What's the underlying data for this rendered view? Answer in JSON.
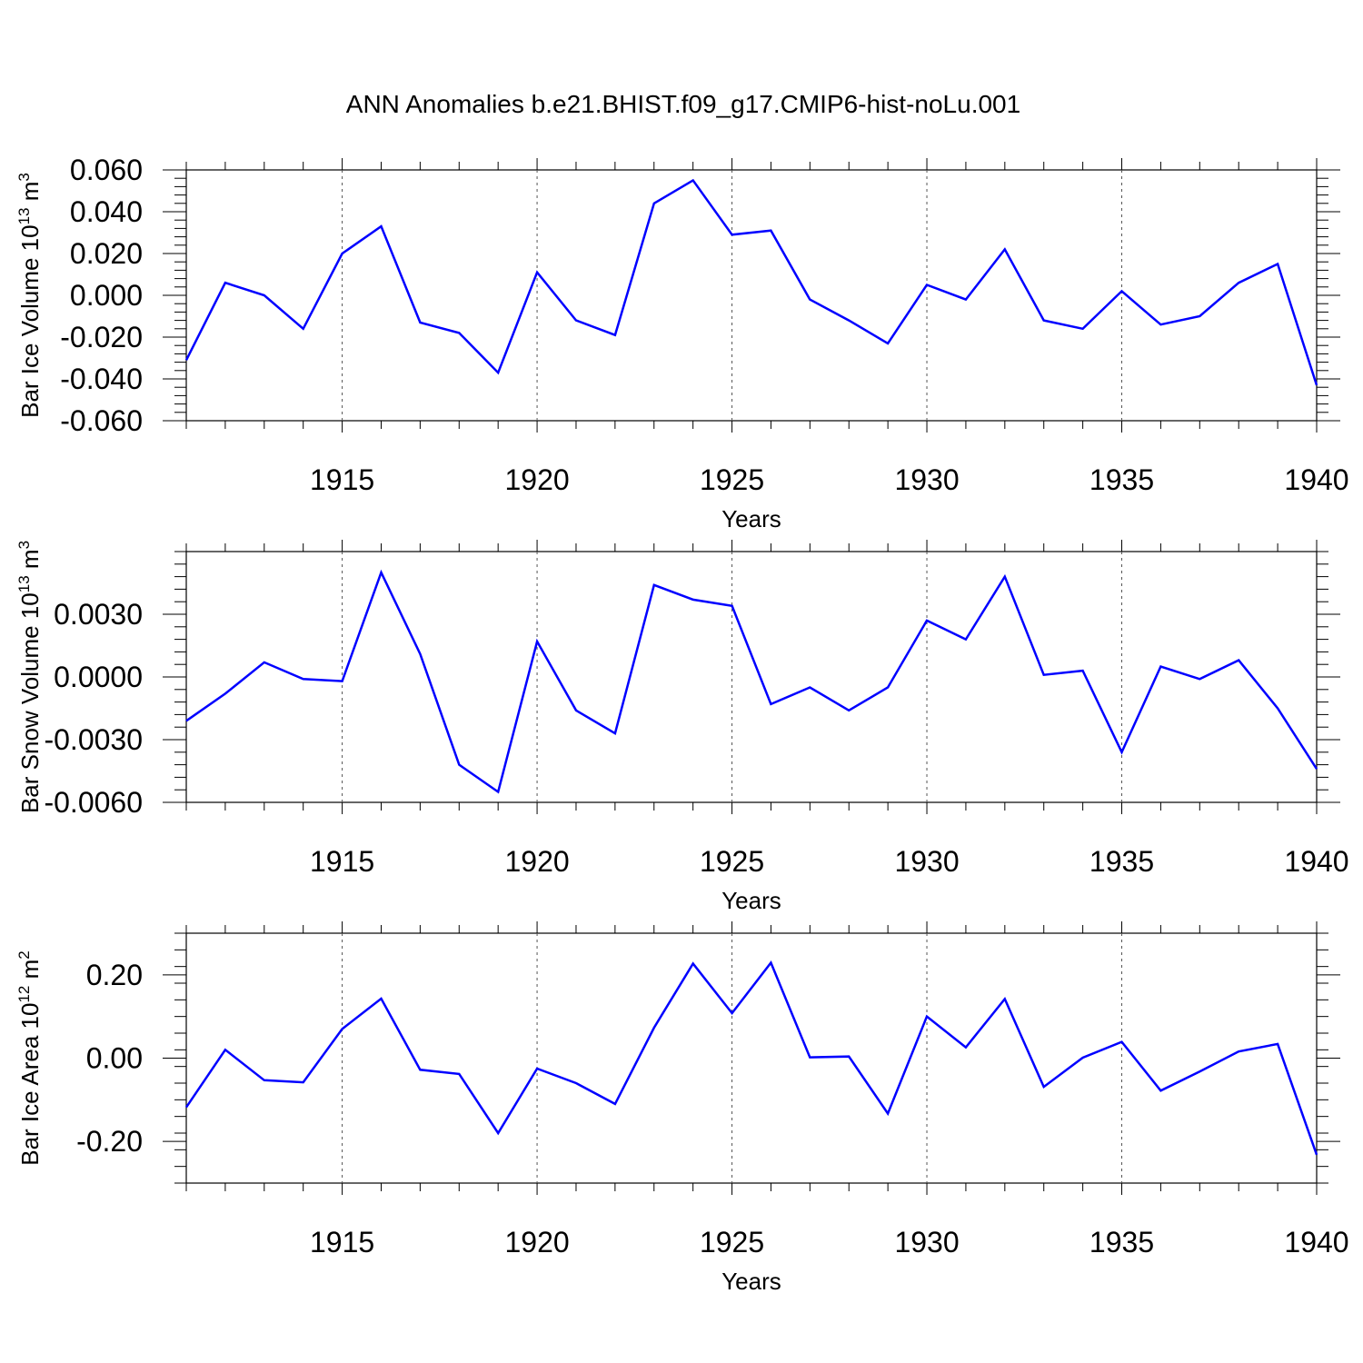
{
  "title": "ANN Anomalies b.e21.BHIST.f09_g17.CMIP6-hist-noLu.001",
  "line_color": "#0000ff",
  "chart_data": [
    {
      "type": "line",
      "ylabel": "Bar Ice Volume 10",
      "ylabel_exp": "13",
      "ylabel_unit": " m",
      "ylabel_unit_exp": "3",
      "xlabel": "Years",
      "xlim": [
        1911,
        1940
      ],
      "ylim": [
        -0.06,
        0.06
      ],
      "x_ticks": [
        "1915",
        "1920",
        "1925",
        "1930",
        "1935",
        "1940"
      ],
      "y_ticks": [
        "0.060",
        "0.040",
        "0.020",
        "0.000",
        "-0.020",
        "-0.040",
        "-0.060"
      ],
      "series": [
        {
          "x": [
            1911,
            1912,
            1913,
            1914,
            1915,
            1916,
            1917,
            1918,
            1919,
            1920,
            1921,
            1922,
            1923,
            1924,
            1925,
            1926,
            1927,
            1928,
            1929,
            1930,
            1931,
            1932,
            1933,
            1934,
            1935,
            1936,
            1937,
            1938,
            1939,
            1940
          ],
          "values": [
            -0.031,
            0.006,
            0.0,
            -0.016,
            0.02,
            0.033,
            -0.013,
            -0.018,
            -0.037,
            0.011,
            -0.012,
            -0.019,
            0.044,
            0.055,
            0.029,
            0.031,
            -0.002,
            -0.012,
            -0.023,
            0.005,
            -0.002,
            0.022,
            -0.012,
            -0.016,
            0.002,
            -0.014,
            -0.01,
            0.006,
            0.015,
            -0.043
          ]
        }
      ]
    },
    {
      "type": "line",
      "ylabel": "Bar Snow Volume 10",
      "ylabel_exp": "13",
      "ylabel_unit": " m",
      "ylabel_unit_exp": "3",
      "xlabel": "Years",
      "xlim": [
        1911,
        1940
      ],
      "ylim": [
        -0.006,
        0.006
      ],
      "x_ticks": [
        "1915",
        "1920",
        "1925",
        "1930",
        "1935",
        "1940"
      ],
      "y_ticks": [
        "0.0030",
        "0.0000",
        "-0.0030",
        "-0.0060"
      ],
      "series": [
        {
          "x": [
            1911,
            1912,
            1913,
            1914,
            1915,
            1916,
            1917,
            1918,
            1919,
            1920,
            1921,
            1922,
            1923,
            1924,
            1925,
            1926,
            1927,
            1928,
            1929,
            1930,
            1931,
            1932,
            1933,
            1934,
            1935,
            1936,
            1937,
            1938,
            1939,
            1940
          ],
          "values": [
            -0.0021,
            -0.0008,
            0.0007,
            -0.0001,
            -0.0002,
            0.005,
            0.0011,
            -0.0042,
            -0.0055,
            0.0017,
            -0.0016,
            -0.0027,
            0.0044,
            0.0037,
            0.0034,
            -0.0013,
            -0.0005,
            -0.0016,
            -0.0005,
            0.0027,
            0.0018,
            0.0048,
            0.0001,
            0.0003,
            -0.0036,
            0.0005,
            -0.0001,
            0.0008,
            -0.0015,
            -0.0044
          ]
        }
      ]
    },
    {
      "type": "line",
      "ylabel": "Bar Ice Area 10",
      "ylabel_exp": "12",
      "ylabel_unit": " m",
      "ylabel_unit_exp": "2",
      "xlabel": "Years",
      "xlim": [
        1911,
        1940
      ],
      "ylim": [
        -0.3,
        0.3
      ],
      "x_ticks": [
        "1915",
        "1920",
        "1925",
        "1930",
        "1935",
        "1940"
      ],
      "y_ticks": [
        "0.20",
        "0.00",
        "-0.20"
      ],
      "series": [
        {
          "x": [
            1911,
            1912,
            1913,
            1914,
            1915,
            1916,
            1917,
            1918,
            1919,
            1920,
            1921,
            1922,
            1923,
            1924,
            1925,
            1926,
            1927,
            1928,
            1929,
            1930,
            1931,
            1932,
            1933,
            1934,
            1935,
            1936,
            1937,
            1938,
            1939,
            1940
          ],
          "values": [
            -0.118,
            0.02,
            -0.053,
            -0.058,
            0.07,
            0.143,
            -0.028,
            -0.038,
            -0.18,
            -0.025,
            -0.06,
            -0.11,
            0.073,
            0.227,
            0.108,
            0.229,
            0.002,
            0.004,
            -0.133,
            0.1,
            0.026,
            0.142,
            -0.069,
            0.001,
            0.039,
            -0.078,
            -0.032,
            0.016,
            0.034,
            -0.232
          ]
        }
      ]
    }
  ]
}
